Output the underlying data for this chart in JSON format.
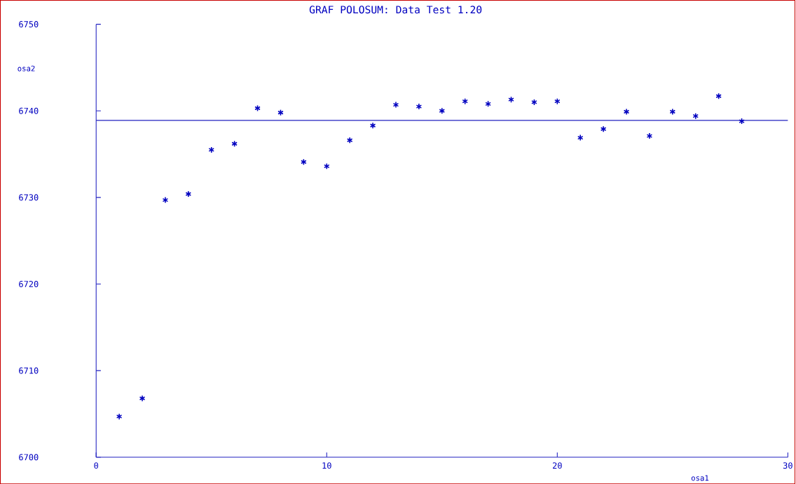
{
  "chart_data": {
    "type": "scatter",
    "title": "GRAF POLOSUM: Data Test 1.20",
    "xlabel": "osa1",
    "ylabel": "osa2",
    "x": [
      1,
      2,
      3,
      4,
      5,
      6,
      7,
      8,
      9,
      10,
      11,
      12,
      13,
      14,
      15,
      16,
      17,
      18,
      19,
      20,
      21,
      22,
      23,
      24,
      25,
      26,
      27,
      28
    ],
    "values": [
      6704.7,
      6706.8,
      6729.7,
      6730.4,
      6735.5,
      6736.2,
      6740.3,
      6739.8,
      6734.1,
      6733.6,
      6736.6,
      6738.3,
      6740.7,
      6740.5,
      6740.0,
      6741.1,
      6740.8,
      6741.3,
      6741.0,
      6741.1,
      6736.9,
      6737.9,
      6739.9,
      6737.1,
      6739.9,
      6739.4,
      6741.7,
      6738.8
    ],
    "color": "#0000c0",
    "marker": "cross",
    "xlim": [
      0,
      30
    ],
    "ylim": [
      6700,
      6750
    ],
    "xticks": [
      0,
      10,
      20,
      30
    ],
    "yticks": [
      6700,
      6710,
      6720,
      6730,
      6740,
      6750
    ],
    "ref_lines": [
      {
        "axis": "y",
        "value": 6738.9,
        "color": "#2020c0"
      }
    ],
    "grid": false
  }
}
